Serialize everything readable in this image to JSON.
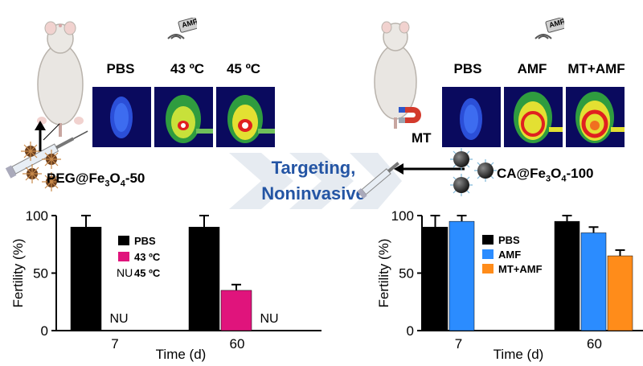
{
  "left_panel": {
    "field_label": "AMF",
    "thermal_labels": [
      "PBS",
      "43 ºC",
      "45 ºC"
    ],
    "particle_label": {
      "prefix": "PEG@Fe",
      "sub1": "3",
      "mid": "O",
      "sub2": "4",
      "suffix": "-50"
    }
  },
  "right_panel": {
    "field_label": "AMF",
    "magnet_label": "MT",
    "thermal_labels": [
      "PBS",
      "AMF",
      "MT+AMF"
    ],
    "particle_label": {
      "prefix": "CA@Fe",
      "sub1": "3",
      "mid": "O",
      "sub2": "4",
      "suffix": "-100"
    }
  },
  "center": {
    "line1": "Targeting,",
    "line2": "Noninvasive"
  },
  "colors": {
    "black": "#000000",
    "magenta": "#e0147c",
    "blue": "#2b8cff",
    "orange": "#ff8c1a",
    "arrow_blue": "#2455a4"
  },
  "chart_data": [
    {
      "type": "bar",
      "title": "",
      "xlabel": "Time (d)",
      "ylabel": "Fertility (%)",
      "ylim": [
        0,
        100
      ],
      "yticks": [
        "0",
        "50",
        "100"
      ],
      "categories": [
        "7",
        "60"
      ],
      "series": [
        {
          "name": "PBS",
          "color": "#000000",
          "values": [
            90,
            90
          ],
          "errors": [
            10,
            10
          ]
        },
        {
          "name": "43 ºC",
          "color": "#e0147c",
          "values": [
            null,
            35
          ],
          "errors": [
            null,
            5
          ]
        },
        {
          "name": "45 ºC",
          "color": "#ffffff",
          "values": [
            null,
            null
          ],
          "errors": [
            null,
            null
          ]
        }
      ],
      "not_available": [
        {
          "category": "7",
          "series": "43 ºC",
          "label": "NU"
        },
        {
          "category": "60",
          "series": "45 ºC",
          "label": "NU"
        }
      ],
      "legend_extra_prefix": "NU",
      "legend_position": "top-center"
    },
    {
      "type": "bar",
      "title": "",
      "xlabel": "Time (d)",
      "ylabel": "Fertility (%)",
      "ylim": [
        0,
        100
      ],
      "yticks": [
        "0",
        "50",
        "100"
      ],
      "categories": [
        "7",
        "60"
      ],
      "series": [
        {
          "name": "PBS",
          "color": "#000000",
          "values": [
            90,
            95
          ],
          "errors": [
            10,
            5
          ]
        },
        {
          "name": "AMF",
          "color": "#2b8cff",
          "values": [
            95,
            85
          ],
          "errors": [
            5,
            5
          ]
        },
        {
          "name": "MT+AMF",
          "color": "#ff8c1a",
          "values": [
            null,
            65
          ],
          "errors": [
            null,
            5
          ]
        }
      ],
      "legend_position": "center"
    }
  ]
}
